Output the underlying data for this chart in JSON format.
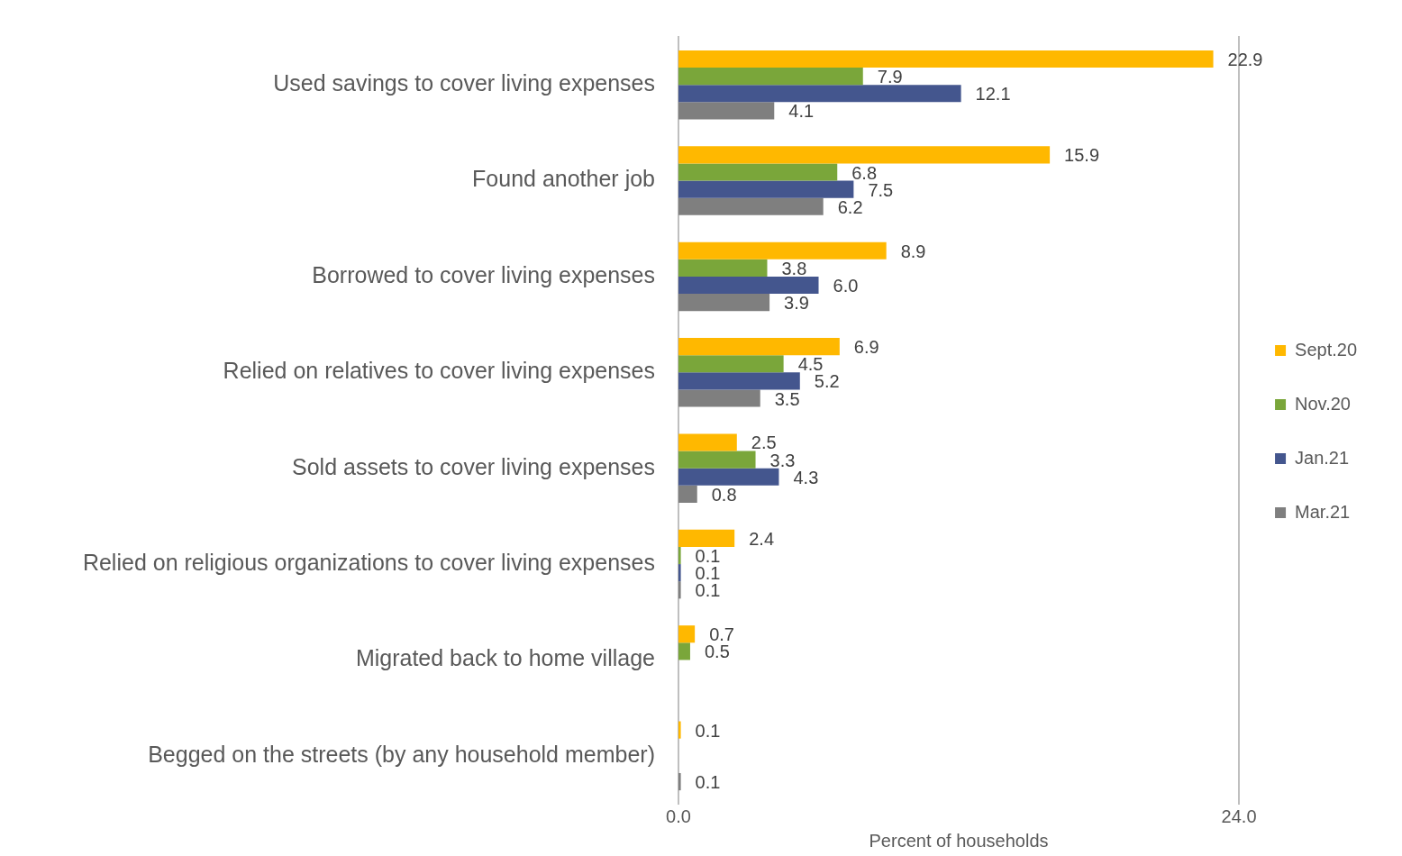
{
  "chart_data": {
    "type": "bar",
    "orientation": "horizontal",
    "xlabel": "Percent of households",
    "categories": [
      "Used savings to cover living expenses",
      "Found another job",
      "Borrowed to cover living expenses",
      "Relied on relatives to cover living expenses",
      "Sold assets to cover living expenses",
      "Relied on religious organizations to cover living expenses",
      "Migrated back to home village",
      "Begged on the streets (by any household member)"
    ],
    "series": [
      {
        "name": "Sept.20",
        "color": "#ffb800",
        "values": [
          22.9,
          15.9,
          8.9,
          6.9,
          2.5,
          2.4,
          0.7,
          0.1
        ],
        "value_labels": [
          "22.9",
          "15.9",
          "8.9",
          "6.9",
          "2.5",
          "2.4",
          "0.7",
          "0.1"
        ]
      },
      {
        "name": "Nov.20",
        "color": "#7aa63a",
        "values": [
          7.9,
          6.8,
          3.8,
          4.5,
          3.3,
          0.1,
          0.5,
          null
        ],
        "value_labels": [
          "7.9",
          "6.8",
          "3.8",
          "4.5",
          "3.3",
          "0.1",
          "0.5",
          null
        ]
      },
      {
        "name": "Jan.21",
        "color": "#44568e",
        "values": [
          12.1,
          7.5,
          6.0,
          5.2,
          4.3,
          0.1,
          null,
          null
        ],
        "value_labels": [
          "12.1",
          "7.5",
          "6.0",
          "5.2",
          "4.3",
          "0.1",
          null,
          null
        ]
      },
      {
        "name": "Mar.21",
        "color": "#7f7f7f",
        "values": [
          4.1,
          6.2,
          3.9,
          3.5,
          0.8,
          0.1,
          null,
          0.1
        ],
        "value_labels": [
          "4.1",
          "6.2",
          "3.9",
          "3.5",
          "0.8",
          "0.1",
          null,
          "0.1"
        ]
      }
    ],
    "xlim": [
      0,
      24
    ],
    "xticks": [
      {
        "value": 0,
        "label": "0.0"
      },
      {
        "value": 24,
        "label": "24.0"
      }
    ],
    "legend": "right"
  }
}
